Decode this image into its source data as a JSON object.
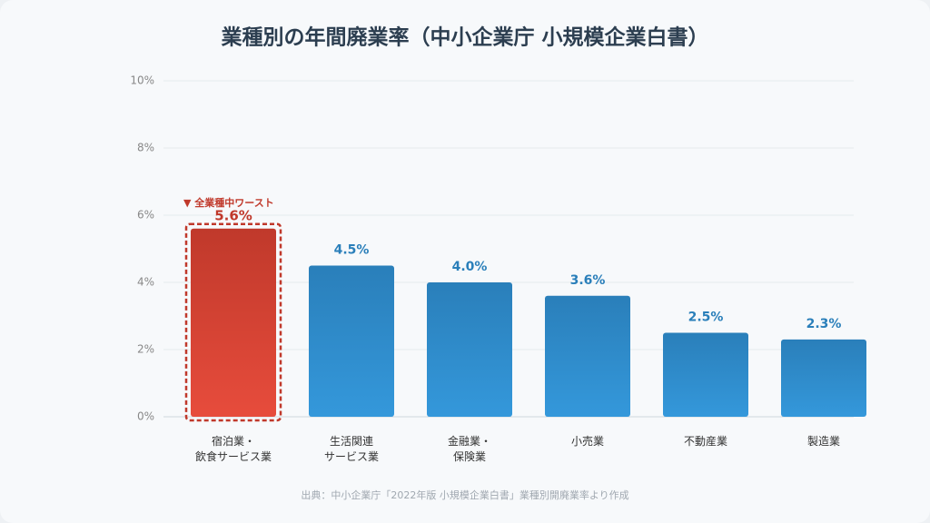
{
  "chart_data": {
    "type": "bar",
    "title": "業種別の年間廃業率（中小企業庁 小規模企業白書）",
    "categories": [
      [
        "宿泊業・",
        "飲食サービス業"
      ],
      [
        "生活関連",
        "サービス業"
      ],
      [
        "金融業・",
        "保険業"
      ],
      [
        "小売業"
      ],
      [
        "不動産業"
      ],
      [
        "製造業"
      ]
    ],
    "values": [
      5.6,
      4.5,
      4.0,
      3.6,
      2.5,
      2.3
    ],
    "value_labels": [
      "5.6%",
      "4.5%",
      "4.0%",
      "3.6%",
      "2.5%",
      "2.3%"
    ],
    "colors": [
      "#d63a2f",
      "#2e8bc9",
      "#2e8bc9",
      "#2e8bc9",
      "#2e8bc9",
      "#2e8bc9"
    ],
    "ylim": [
      0,
      10
    ],
    "yticks": [
      {
        "value": 0,
        "label": "0%"
      },
      {
        "value": 2,
        "label": "2%"
      },
      {
        "value": 4,
        "label": "4%"
      },
      {
        "value": 6,
        "label": "6%"
      },
      {
        "value": 8,
        "label": "8%"
      },
      {
        "value": 10,
        "label": "10%"
      }
    ],
    "grid": true,
    "annotation": "▼ 全業種中ワースト",
    "source": "出典：中小企業庁「2022年版 小規模企業白書」業種別開廃業率より作成"
  }
}
